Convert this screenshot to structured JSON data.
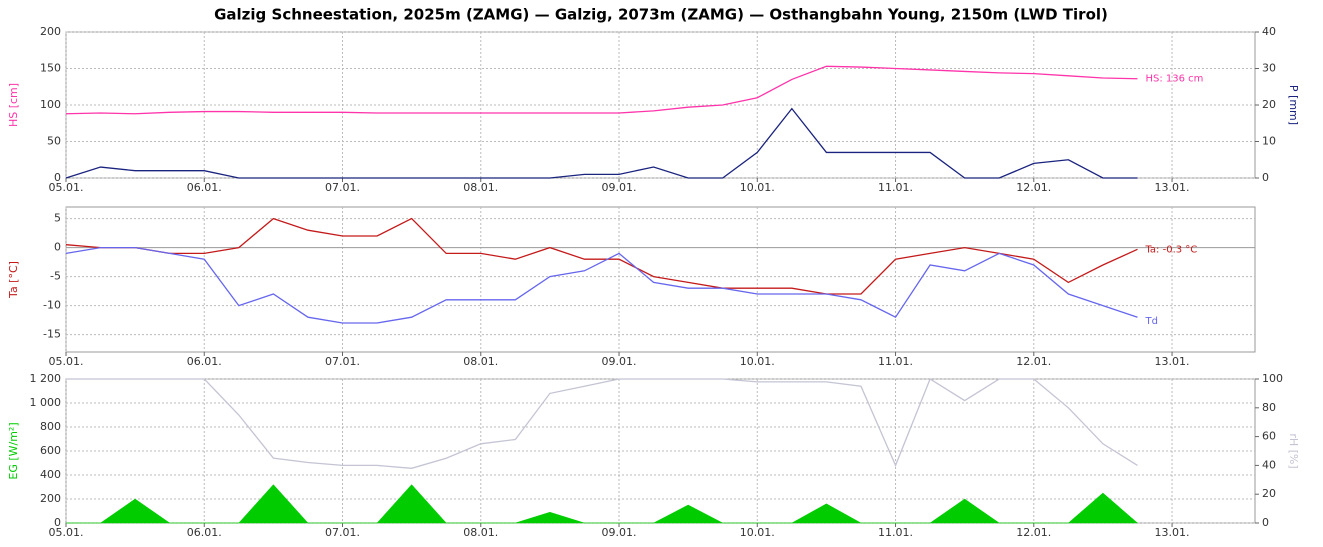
{
  "title": "Galzig Schneestation, 2025m (ZAMG) — Galzig, 2073m (ZAMG) — Osthangbahn Young, 2150m (LWD Tirol)",
  "chart_data": [
    {
      "type": "line",
      "ylabel": "HS [cm]",
      "y2label": "P [mm]",
      "x": [
        5,
        5.25,
        5.5,
        5.75,
        6,
        6.25,
        6.5,
        6.75,
        7,
        7.25,
        7.5,
        7.75,
        8,
        8.25,
        8.5,
        8.75,
        9,
        9.25,
        9.5,
        9.75,
        10,
        10.25,
        10.5,
        10.75,
        11,
        11.25,
        11.5,
        11.75,
        12,
        12.25,
        12.5,
        12.75
      ],
      "xlim": [
        5,
        13.6
      ],
      "xticks": [
        {
          "value": 5,
          "label": "05.01."
        },
        {
          "value": 6,
          "label": "06.01."
        },
        {
          "value": 7,
          "label": "07.01."
        },
        {
          "value": 8,
          "label": "08.01."
        },
        {
          "value": 9,
          "label": "09.01."
        },
        {
          "value": 10,
          "label": "10.01."
        },
        {
          "value": 11,
          "label": "11.01."
        },
        {
          "value": 12,
          "label": "12.01."
        },
        {
          "value": 13,
          "label": "13.01."
        }
      ],
      "ylim": [
        0,
        200
      ],
      "yticks": [
        0,
        50,
        100,
        150,
        200
      ],
      "y2lim": [
        0,
        40
      ],
      "y2ticks": [
        0,
        10,
        20,
        30,
        40
      ],
      "grid": true,
      "series": [
        {
          "name": "HS",
          "label": "HS: 136 cm",
          "color": "#ff33aa",
          "values": [
            88,
            89,
            88,
            90,
            91,
            91,
            90,
            90,
            90,
            89,
            89,
            89,
            89,
            89,
            89,
            89,
            89,
            92,
            97,
            100,
            110,
            135,
            153,
            152,
            150,
            148,
            146,
            144,
            143,
            140,
            137,
            136
          ]
        },
        {
          "name": "P",
          "color": "#1a237e",
          "axis": "y2",
          "values": [
            0,
            3,
            2,
            2,
            2,
            0,
            0,
            0,
            0,
            0,
            0,
            0,
            0,
            0,
            0,
            1,
            1,
            3,
            0,
            0,
            7,
            19,
            7,
            7,
            7,
            7,
            0,
            0,
            4,
            5,
            0,
            0
          ]
        }
      ]
    },
    {
      "type": "line",
      "ylabel": "Ta [°C]",
      "x": [
        5,
        5.25,
        5.5,
        5.75,
        6,
        6.25,
        6.5,
        6.75,
        7,
        7.25,
        7.5,
        7.75,
        8,
        8.25,
        8.5,
        8.75,
        9,
        9.25,
        9.5,
        9.75,
        10,
        10.25,
        10.5,
        10.75,
        11,
        11.25,
        11.5,
        11.75,
        12,
        12.25,
        12.5,
        12.75
      ],
      "xlim": [
        5,
        13.6
      ],
      "xticks": [
        {
          "value": 5,
          "label": "05.01."
        },
        {
          "value": 6,
          "label": "06.01."
        },
        {
          "value": 7,
          "label": "07.01."
        },
        {
          "value": 8,
          "label": "08.01."
        },
        {
          "value": 9,
          "label": "09.01."
        },
        {
          "value": 10,
          "label": "10.01."
        },
        {
          "value": 11,
          "label": "11.01."
        },
        {
          "value": 12,
          "label": "12.01."
        },
        {
          "value": 13,
          "label": "13.01."
        }
      ],
      "ylim": [
        -18,
        7
      ],
      "yticks": [
        -15,
        -10,
        -5,
        0,
        5
      ],
      "grid": true,
      "series": [
        {
          "name": "Ta",
          "label": "Ta: -0.3 °C",
          "color": "#c41a1a",
          "values": [
            0.5,
            0,
            0,
            -1,
            -1,
            0,
            5,
            3,
            2,
            2,
            5,
            -1,
            -1,
            -2,
            0,
            -2,
            -2,
            -5,
            -6,
            -7,
            -7,
            -7,
            -8,
            -8,
            -2,
            -1,
            0,
            -1,
            -2,
            -6,
            -3,
            -0.3
          ]
        },
        {
          "name": "Td",
          "label": "Td",
          "color": "#6666ee",
          "values": [
            -1,
            0,
            0,
            -1,
            -2,
            -10,
            -8,
            -12,
            -13,
            -13,
            -12,
            -9,
            -9,
            -9,
            -5,
            -4,
            -1,
            -6,
            -7,
            -7,
            -8,
            -8,
            -8,
            -9,
            -12,
            -3,
            -4,
            -1,
            -3,
            -8,
            -10,
            -12
          ]
        }
      ]
    },
    {
      "type": "line",
      "ylabel": "EG [W/m²]",
      "y2label": "rH [%]",
      "x": [
        5,
        5.25,
        5.5,
        5.75,
        6,
        6.25,
        6.5,
        6.75,
        7,
        7.25,
        7.5,
        7.75,
        8,
        8.25,
        8.5,
        8.75,
        9,
        9.25,
        9.5,
        9.75,
        10,
        10.25,
        10.5,
        10.75,
        11,
        11.25,
        11.5,
        11.75,
        12,
        12.25,
        12.5,
        12.75
      ],
      "xlim": [
        5,
        13.6
      ],
      "xticks": [
        {
          "value": 5,
          "label": "05.01."
        },
        {
          "value": 6,
          "label": "06.01."
        },
        {
          "value": 7,
          "label": "07.01."
        },
        {
          "value": 8,
          "label": "08.01."
        },
        {
          "value": 9,
          "label": "09.01."
        },
        {
          "value": 10,
          "label": "10.01."
        },
        {
          "value": 11,
          "label": "11.01."
        },
        {
          "value": 12,
          "label": "12.01."
        },
        {
          "value": 13,
          "label": "13.01."
        }
      ],
      "ylim": [
        0,
        1200
      ],
      "yticks": [
        0,
        200,
        400,
        600,
        800,
        {
          "value": 1000,
          "label": "1 000"
        },
        {
          "value": 1200,
          "label": "1 200"
        }
      ],
      "y2lim": [
        0,
        100
      ],
      "y2ticks": [
        0,
        20,
        40,
        60,
        80,
        100
      ],
      "grid": true,
      "series": [
        {
          "name": "rH",
          "color": "#c4c4d4",
          "axis": "y2",
          "values": [
            100,
            100,
            100,
            100,
            100,
            75,
            45,
            42,
            40,
            40,
            38,
            45,
            55,
            58,
            90,
            95,
            100,
            100,
            100,
            100,
            98,
            98,
            98,
            95,
            40,
            100,
            85,
            100,
            100,
            80,
            55,
            40
          ]
        },
        {
          "name": "EG",
          "color": "#00cc00",
          "area": true,
          "values": [
            0,
            0,
            200,
            0,
            0,
            0,
            320,
            0,
            0,
            0,
            320,
            0,
            0,
            0,
            90,
            0,
            0,
            0,
            150,
            0,
            0,
            0,
            160,
            0,
            0,
            0,
            200,
            0,
            0,
            0,
            250,
            0
          ]
        }
      ]
    }
  ]
}
